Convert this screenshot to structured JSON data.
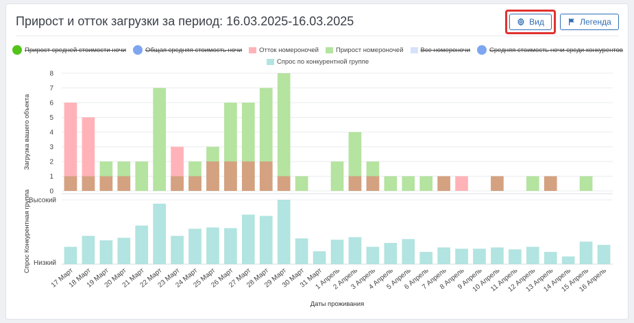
{
  "header": {
    "title": "Прирост и отток загрузки за период: 16.03.2025-16.03.2025",
    "view_button": "Вид",
    "legend_button": "Легенда"
  },
  "colors": {
    "accent": "#2f6db5",
    "highlight": "#e0312f",
    "outflow": "#ffb3b8",
    "growth": "#b5e3a0",
    "overlap": "#d4a181",
    "demand": "#b2e4e1"
  },
  "legend": {
    "row1": [
      {
        "label": "Прирост средней стоимости ночи",
        "color": "#52c41a",
        "shape": "circle",
        "disabled": true
      },
      {
        "label": "Общая средняя стоимость ночи",
        "color": "#7ea6f0",
        "shape": "circle",
        "disabled": true
      },
      {
        "label": "Отток номероночей",
        "color": "#ffb3b8",
        "shape": "square",
        "disabled": false
      },
      {
        "label": "Прирост номероночей",
        "color": "#b5e3a0",
        "shape": "square",
        "disabled": false
      },
      {
        "label": "Все номероночи",
        "color": "#d6e2fa",
        "shape": "square",
        "disabled": true
      },
      {
        "label": "Средняя стоимость ночи среди конкурентов",
        "color": "#7ea6f0",
        "shape": "circle",
        "disabled": true
      }
    ],
    "row2": [
      {
        "label": "Спрос по конкурентной группе",
        "color": "#b2e4e1",
        "shape": "square",
        "disabled": false
      }
    ]
  },
  "chart_data": {
    "type": "bar",
    "categories": [
      "17 Март",
      "18 Март",
      "19 Март",
      "20 Март",
      "21 Март",
      "22 Март",
      "23 Март",
      "24 Март",
      "25 Март",
      "26 Март",
      "27 Март",
      "28 Март",
      "29 Март",
      "30 Март",
      "31 Март",
      "1 Апрель",
      "2 Апрель",
      "3 Апрель",
      "4 Апрель",
      "5 Апрель",
      "6 Апрель",
      "7 Апрель",
      "8 Апрель",
      "9 Апрель",
      "10 Апрель",
      "11 Апрель",
      "12 Апрель",
      "13 Апрель",
      "14 Апрель",
      "15 Апрель",
      "16 Апрель"
    ],
    "top_panel": {
      "ylabel": "Загрузка вашего объекта",
      "ylim": [
        0,
        8
      ],
      "yticks": [
        "0",
        "1",
        "2",
        "3",
        "4",
        "5",
        "6",
        "7",
        "8"
      ],
      "series": [
        {
          "name": "Отток номероночей",
          "values": [
            6,
            5,
            0,
            0,
            0,
            0,
            3,
            0,
            0,
            0,
            0,
            0,
            0,
            0,
            0,
            0,
            0,
            0,
            0,
            0,
            0,
            0,
            1,
            0,
            0,
            0,
            0,
            0,
            0,
            0,
            0
          ]
        },
        {
          "name": "Прирост номероночей",
          "values": [
            0,
            0,
            2,
            2,
            2,
            7,
            0,
            2,
            3,
            6,
            6,
            7,
            8,
            1,
            0,
            2,
            4,
            2,
            1,
            1,
            1,
            0,
            0,
            0,
            0,
            0,
            1,
            0,
            0,
            1,
            0
          ]
        },
        {
          "name": "overlap",
          "values": [
            1,
            1,
            1,
            1,
            0,
            0,
            1,
            1,
            2,
            2,
            2,
            2,
            1,
            0,
            0,
            0,
            1,
            1,
            0,
            0,
            0,
            1,
            0,
            0,
            1,
            0,
            0,
            1,
            0,
            0,
            0
          ]
        }
      ]
    },
    "bottom_panel": {
      "ylabel": "Спрос Конкурентная группа",
      "yticks": [
        "Низкий",
        "Высокий"
      ],
      "series": [
        {
          "name": "Спрос по конкурентной группе",
          "values": [
            0.27,
            0.44,
            0.37,
            0.41,
            0.6,
            0.94,
            0.44,
            0.55,
            0.57,
            0.56,
            0.77,
            0.75,
            1.0,
            0.4,
            0.2,
            0.38,
            0.42,
            0.27,
            0.33,
            0.39,
            0.19,
            0.26,
            0.24,
            0.24,
            0.26,
            0.23,
            0.27,
            0.19,
            0.12,
            0.35,
            0.3
          ]
        }
      ]
    },
    "xlabel": "Даты проживания",
    "grid": true
  }
}
